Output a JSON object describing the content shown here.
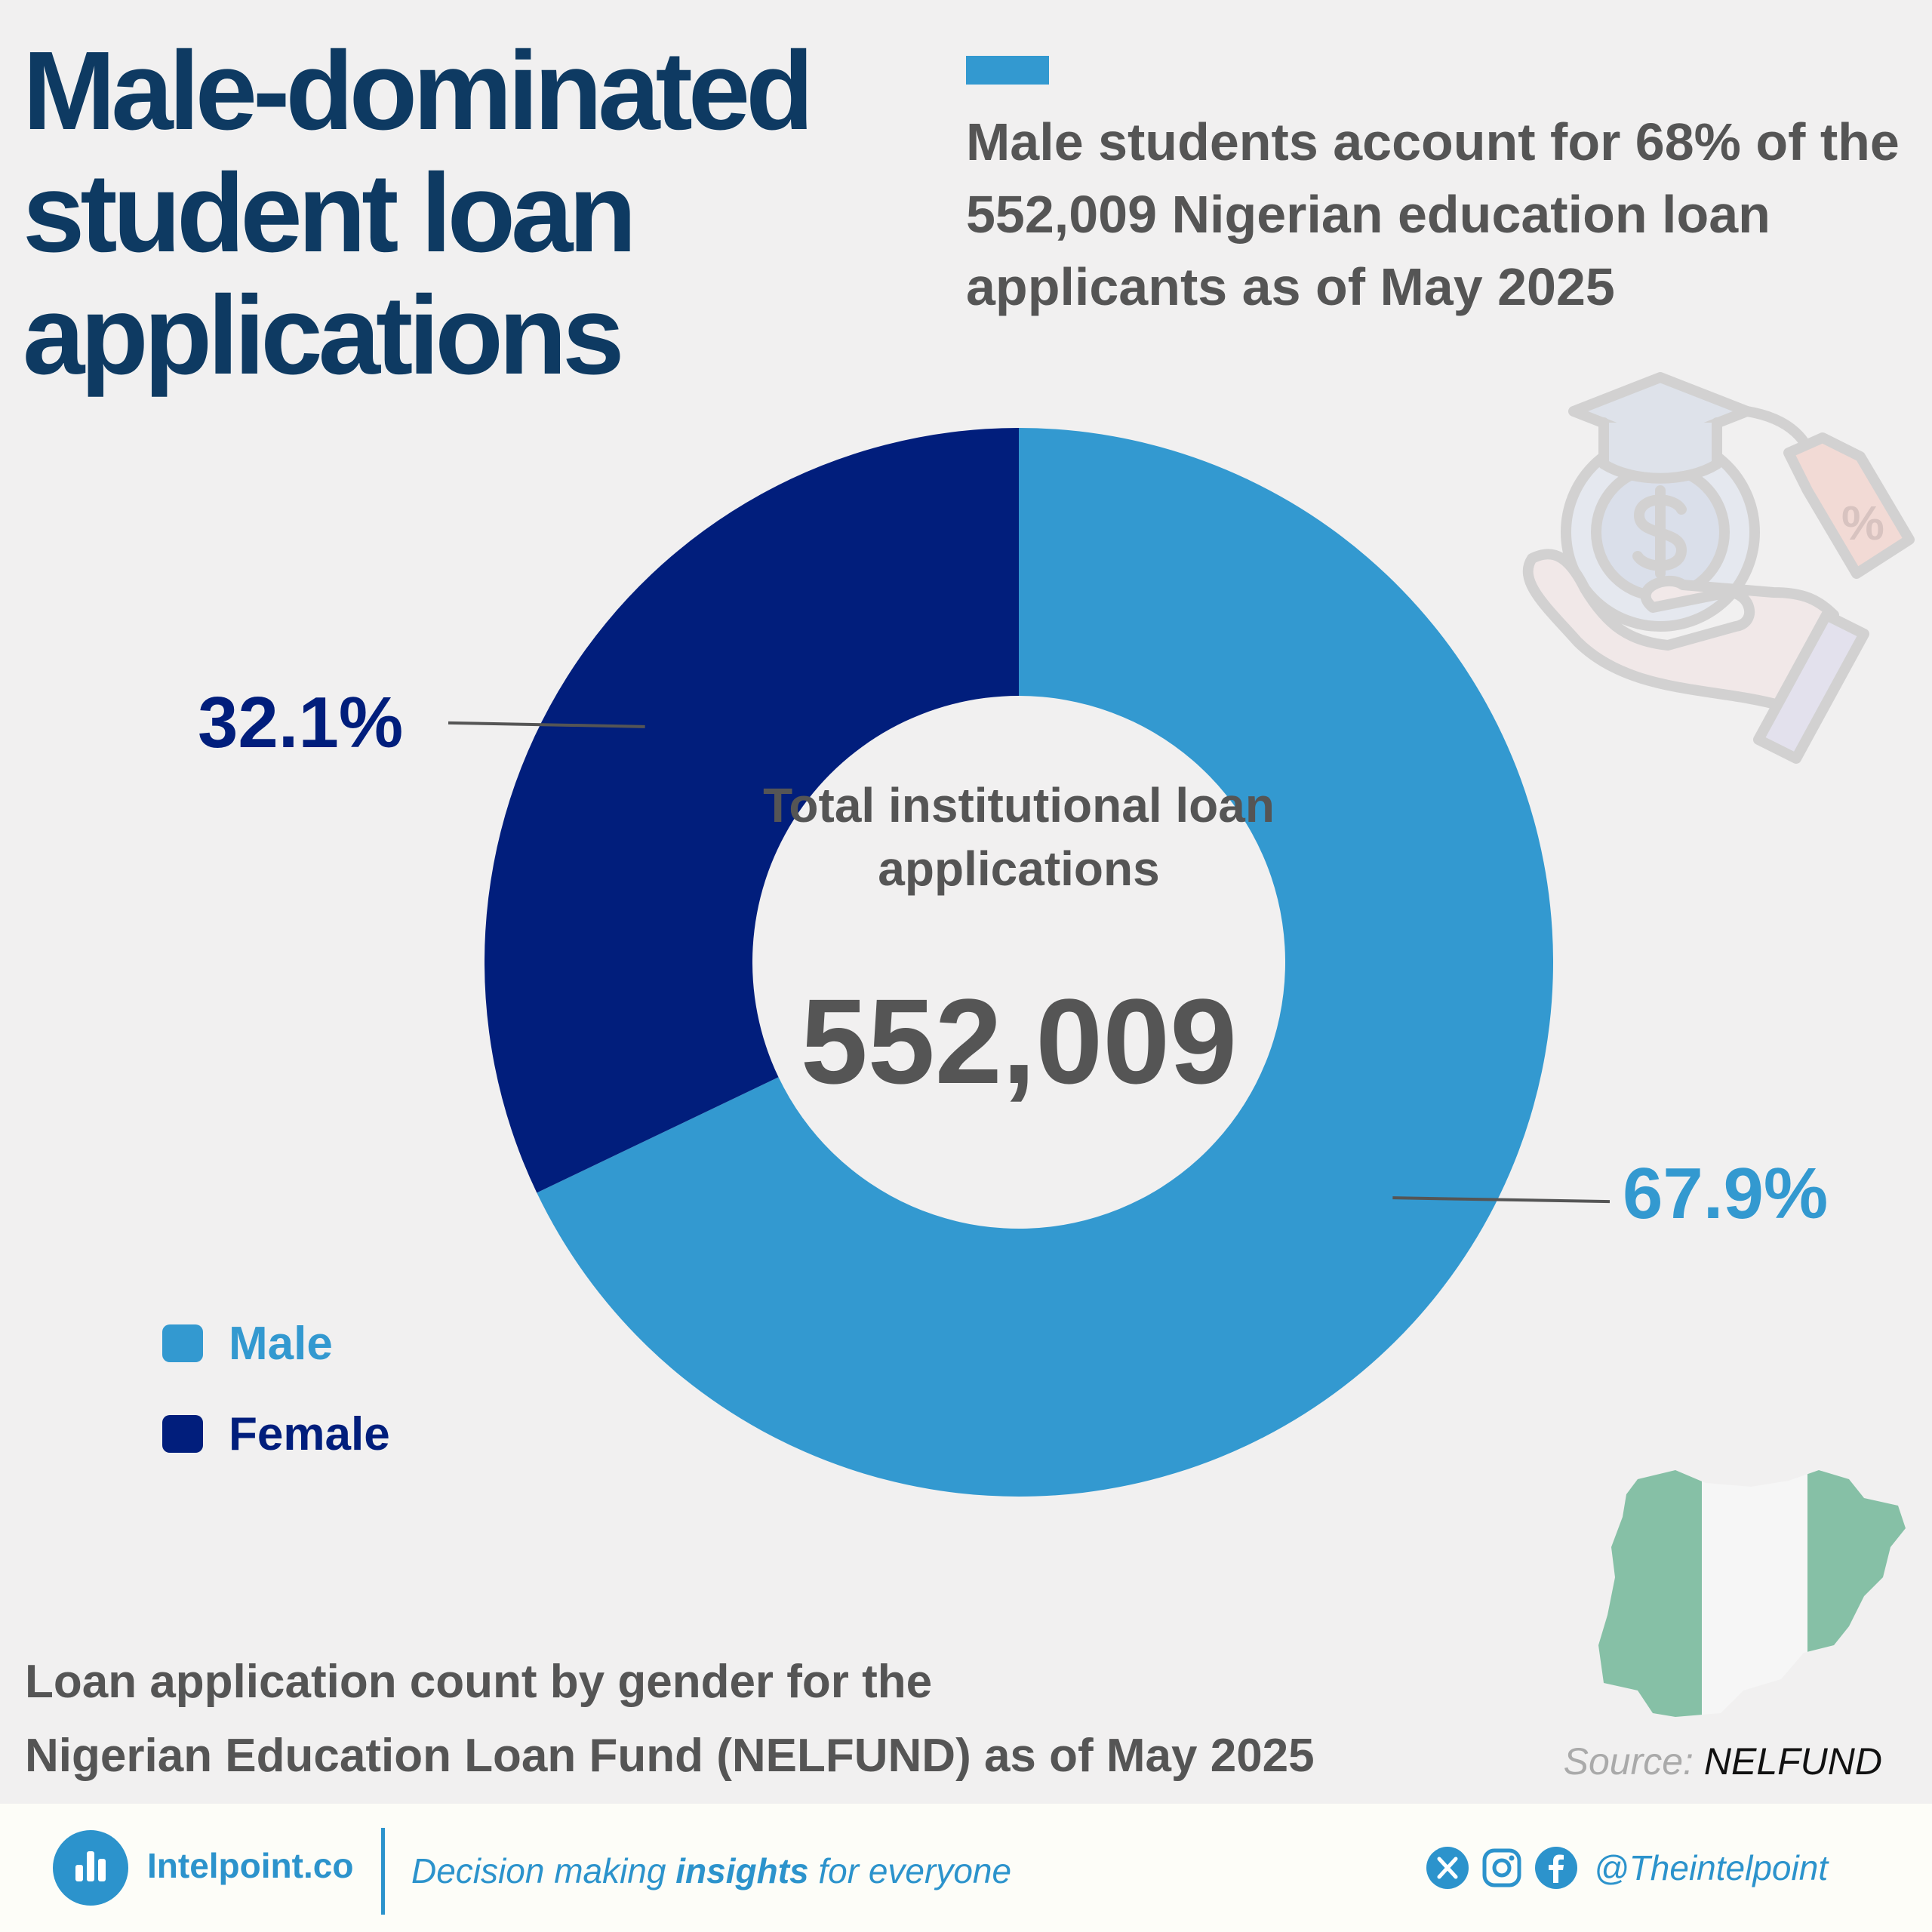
{
  "header": {
    "title": "Male-dominated student loan applications",
    "subtitle": "Male students account for 68% of the 552,009 Nigerian education loan applicants as of May 2025"
  },
  "chart_data": {
    "type": "pie",
    "donut": true,
    "categories": [
      "Male",
      "Female"
    ],
    "values": [
      67.9,
      32.1
    ],
    "value_labels": [
      "67.9%",
      "32.1%"
    ],
    "colors": [
      "#3399d0",
      "#011e7c"
    ],
    "center_label": "Total institutional loan applications",
    "center_value": "552,009",
    "legend": {
      "placement": "bottom-left",
      "items": [
        {
          "label": "Male",
          "color": "#3399d0"
        },
        {
          "label": "Female",
          "color": "#011e7c"
        }
      ]
    }
  },
  "caption": {
    "line1": "Loan application count by gender for the",
    "line2": "Nigerian Education Loan Fund (NELFUND) as of May 2025"
  },
  "source": {
    "label": "Source:",
    "name": "NELFUND"
  },
  "icons": {
    "decoration": "student-loan-hand-icon",
    "map": "nigeria-flag-map-icon"
  },
  "footer": {
    "brand": "Intelpoint.co",
    "tagline_pre": "Decision making ",
    "tagline_bold": "insights",
    "tagline_post": " for everyone",
    "handle": "@Theintelpoint",
    "social_icons": [
      "x-icon",
      "instagram-icon",
      "facebook-icon"
    ],
    "accent": "#2c93cc"
  }
}
